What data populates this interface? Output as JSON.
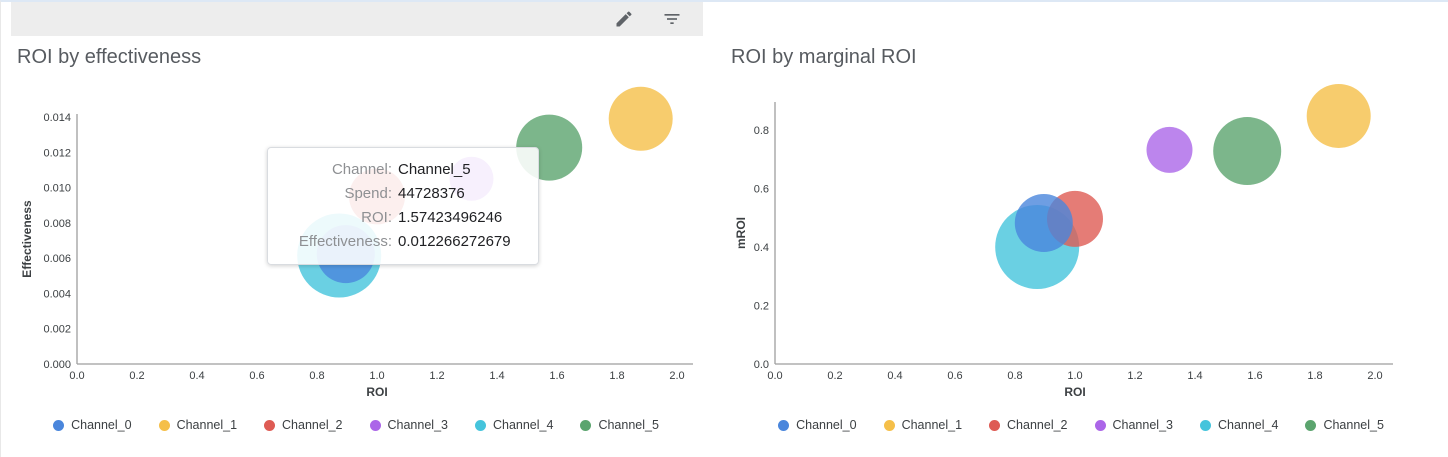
{
  "toolbar": {
    "edit_icon": "pencil-icon",
    "filter_icon": "filter-list-icon"
  },
  "tooltip": {
    "rows": [
      {
        "label": "Channel:",
        "value": "Channel_5"
      },
      {
        "label": "Spend:",
        "value": "44728376"
      },
      {
        "label": "ROI:",
        "value": "1.57423496246"
      },
      {
        "label": "Effectiveness:",
        "value": "0.012266272679"
      }
    ]
  },
  "chart_data": [
    {
      "type": "scatter",
      "title": "ROI by effectiveness",
      "xlabel": "ROI",
      "ylabel": "Effectiveness",
      "xlim": [
        0,
        2
      ],
      "ylim": [
        0,
        0.014
      ],
      "x_ticks": [
        "0.0",
        "0.2",
        "0.4",
        "0.6",
        "0.8",
        "1.0",
        "1.2",
        "1.4",
        "1.6",
        "1.8",
        "2.0"
      ],
      "y_ticks": [
        "0.000",
        "0.002",
        "0.004",
        "0.006",
        "0.008",
        "0.010",
        "0.012",
        "0.014"
      ],
      "grid": false,
      "legend_position": "bottom",
      "series": [
        {
          "name": "Channel_0",
          "color": "#4a86dc",
          "x": 0.896,
          "y": 0.00623,
          "r": 29
        },
        {
          "name": "Channel_1",
          "color": "#f5bf49",
          "x": 1.879,
          "y": 0.0139,
          "r": 32
        },
        {
          "name": "Channel_2",
          "color": "#de5b54",
          "x": 1.0,
          "y": 0.0095,
          "r": 28
        },
        {
          "name": "Channel_3",
          "color": "#ab66e8",
          "x": 1.315,
          "y": 0.0105,
          "r": 22
        },
        {
          "name": "Channel_4",
          "color": "#45c4dc",
          "x": 0.874,
          "y": 0.00615,
          "r": 42
        },
        {
          "name": "Channel_5",
          "color": "#5ba46e",
          "x": 1.574,
          "y": 0.012266272679,
          "r": 33
        }
      ],
      "draw_order": [
        2,
        3,
        4,
        0,
        5,
        1
      ]
    },
    {
      "type": "scatter",
      "title": "ROI by marginal ROI",
      "xlabel": "ROI",
      "ylabel": "mROI",
      "xlim": [
        0,
        2
      ],
      "ylim": [
        0,
        0.8
      ],
      "x_ticks": [
        "0.0",
        "0.2",
        "0.4",
        "0.6",
        "0.8",
        "1.0",
        "1.2",
        "1.4",
        "1.6",
        "1.8",
        "2.0"
      ],
      "y_ticks": [
        "0.0",
        "0.2",
        "0.4",
        "0.6",
        "0.8"
      ],
      "grid": false,
      "legend_position": "bottom",
      "series": [
        {
          "name": "Channel_0",
          "color": "#4a86dc",
          "x": 0.896,
          "y": 0.482,
          "r": 29
        },
        {
          "name": "Channel_1",
          "color": "#f5bf49",
          "x": 1.879,
          "y": 0.848,
          "r": 32
        },
        {
          "name": "Channel_2",
          "color": "#de5b54",
          "x": 1.0,
          "y": 0.496,
          "r": 28
        },
        {
          "name": "Channel_3",
          "color": "#ab66e8",
          "x": 1.315,
          "y": 0.732,
          "r": 23
        },
        {
          "name": "Channel_4",
          "color": "#45c4dc",
          "x": 0.874,
          "y": 0.4,
          "r": 42
        },
        {
          "name": "Channel_5",
          "color": "#5ba46e",
          "x": 1.574,
          "y": 0.728,
          "r": 34
        }
      ],
      "draw_order": [
        4,
        2,
        0,
        3,
        5,
        1
      ]
    }
  ]
}
